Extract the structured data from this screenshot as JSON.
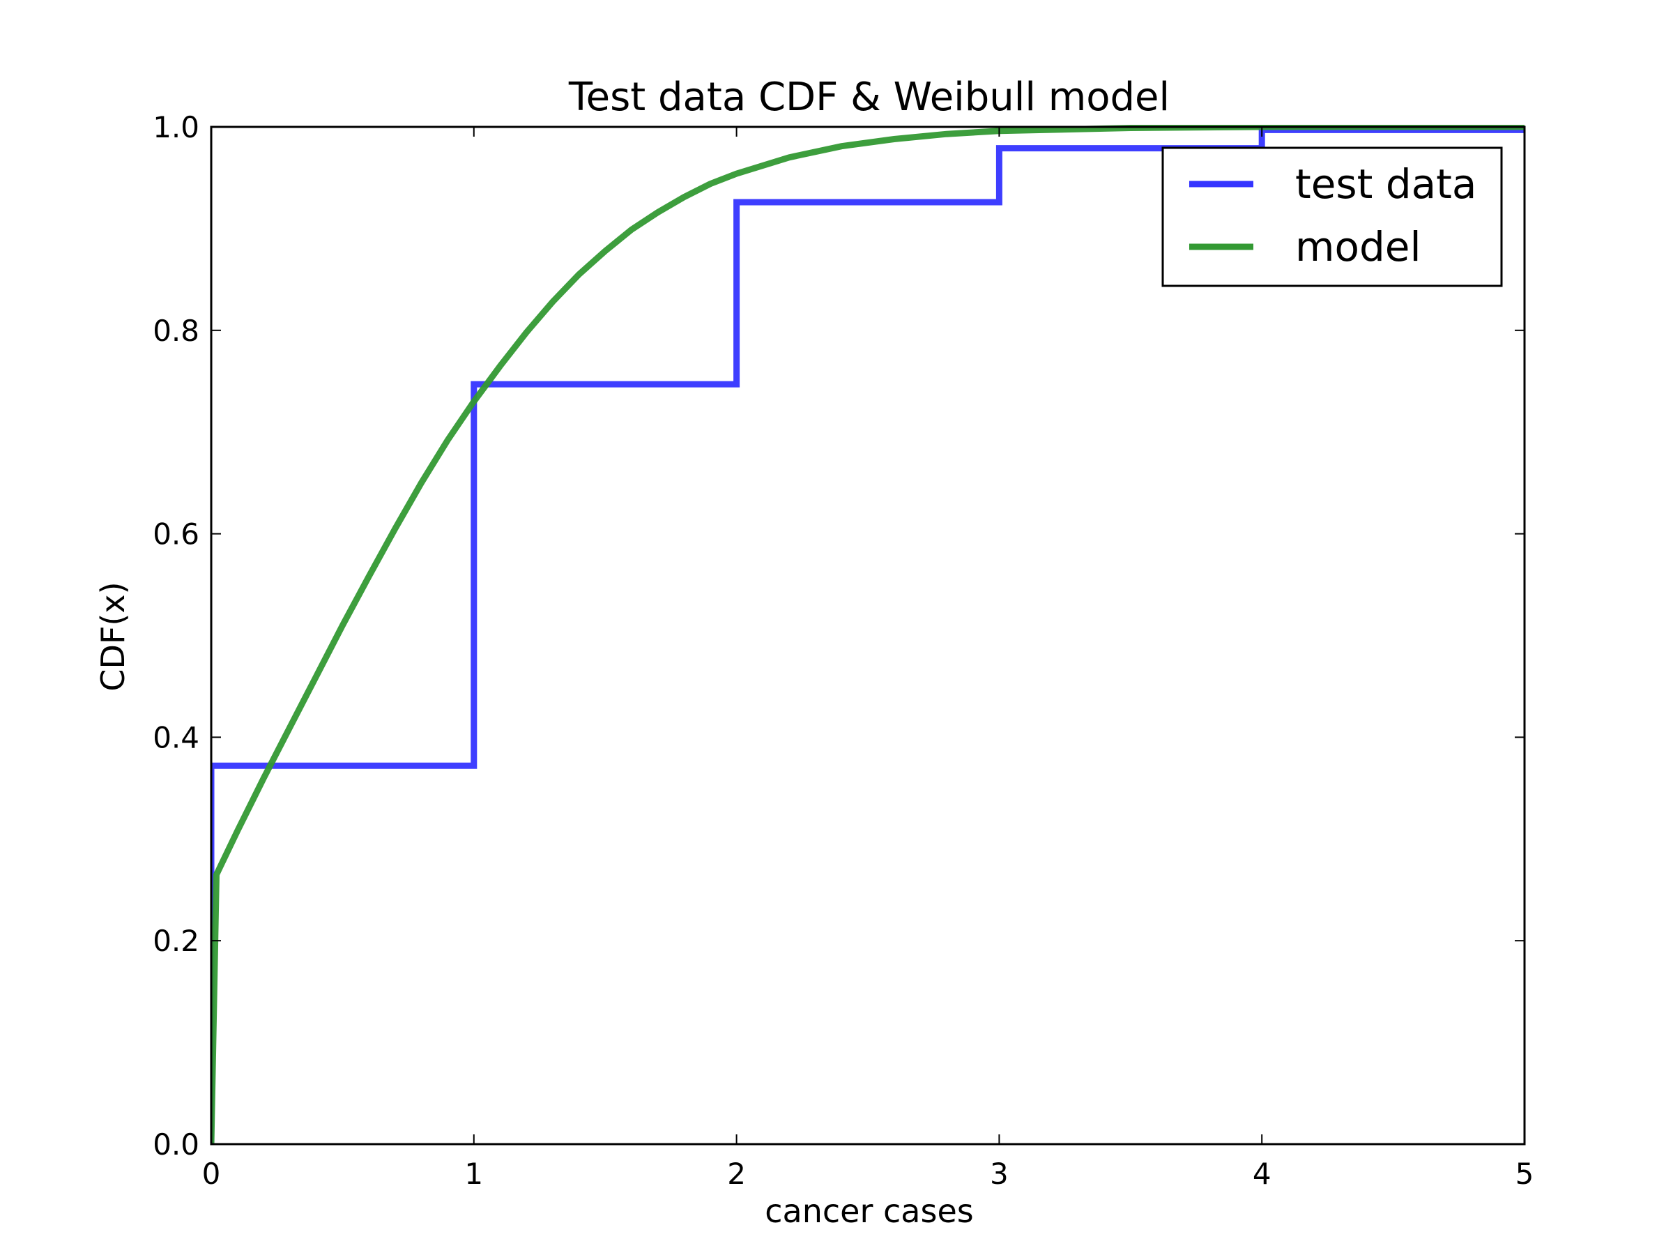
{
  "chart_data": {
    "type": "line",
    "title": "Test data CDF & Weibull model",
    "xlabel": "cancer cases",
    "ylabel": "CDF(x)",
    "xlim": [
      0,
      5
    ],
    "ylim": [
      0,
      1
    ],
    "x_ticks": [
      "0",
      "1",
      "2",
      "3",
      "4",
      "5"
    ],
    "y_ticks": [
      "0.0",
      "0.2",
      "0.4",
      "0.6",
      "0.8",
      "1.0"
    ],
    "grid": false,
    "legend_position": "top-right",
    "series": [
      {
        "name": "test data",
        "color": "#3434ff",
        "style": "step",
        "x": [
          0,
          0,
          1,
          1,
          2,
          2,
          3,
          3,
          4,
          4,
          5
        ],
        "y": [
          0,
          0.372,
          0.372,
          0.747,
          0.747,
          0.926,
          0.926,
          0.979,
          0.979,
          0.997,
          0.997
        ]
      },
      {
        "name": "model",
        "color": "#339933",
        "style": "line",
        "x": [
          0,
          0.02,
          0.1,
          0.2,
          0.3,
          0.4,
          0.5,
          0.6,
          0.7,
          0.8,
          0.9,
          1.0,
          1.1,
          1.2,
          1.3,
          1.4,
          1.5,
          1.6,
          1.7,
          1.8,
          1.9,
          2.0,
          2.2,
          2.4,
          2.6,
          2.8,
          3.0,
          3.5,
          4.0,
          5.0
        ],
        "y": [
          0.0,
          0.265,
          0.308,
          0.36,
          0.41,
          0.46,
          0.51,
          0.558,
          0.605,
          0.65,
          0.692,
          0.73,
          0.765,
          0.798,
          0.828,
          0.855,
          0.878,
          0.899,
          0.916,
          0.931,
          0.944,
          0.954,
          0.97,
          0.981,
          0.988,
          0.993,
          0.996,
          0.999,
          1.0,
          1.0
        ]
      }
    ]
  }
}
